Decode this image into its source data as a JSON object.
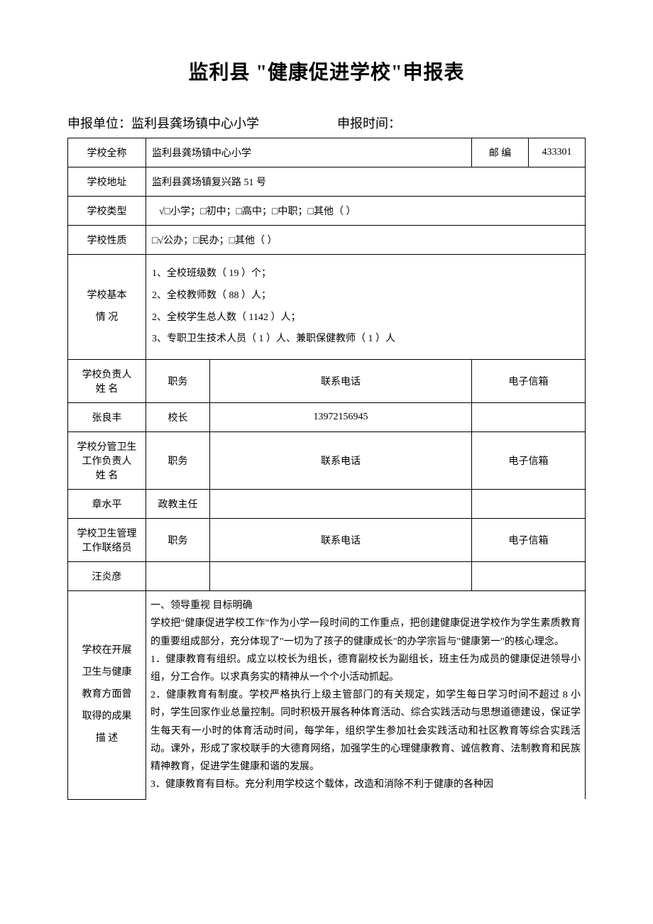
{
  "title": "监利县 \"健康促进学校\"申报表",
  "header": {
    "unit_label": "申报单位：",
    "unit_value": "监利县龚场镇中心小学",
    "time_label": "申报时间："
  },
  "rows": {
    "school_name_label": "学校全称",
    "school_name": "监利县龚场镇中心小学",
    "postcode_label": "邮    编",
    "postcode": "433301",
    "address_label": "学校地址",
    "address": "监利县龚场镇复兴路 51 号",
    "type_label": "学校类型",
    "type_value": "√□小学；□初中；□高中；□中职；□其他（      ）",
    "nature_label": "学校性质",
    "nature_value": "□√公办；□民办；□其他（      ）",
    "basic_label1": "学校基本",
    "basic_label2": "情    况",
    "basic_line1": "1、全校班级数（   19      ）个；",
    "basic_line2": "2、全校教师数（    88      ）人；",
    "basic_line3": "2、全校学生总人数（  1142        ）人；",
    "basic_line4": "3、专职卫生技术人员（     1  ）人、兼职保健教师（  1    ）人",
    "principal_label1": "学校负责人",
    "principal_label2": "姓    名",
    "position_label": "职务",
    "phone_label": "联系电话",
    "email_label": "电子信箱",
    "principal_name": "张良丰",
    "principal_position": "校长",
    "principal_phone": "13972156945",
    "health_mgr_label1": "学校分管卫生",
    "health_mgr_label2": "工作负责人",
    "health_mgr_label3": "姓    名",
    "health_mgr_name": "章水平",
    "health_mgr_position": "政教主任",
    "liaison_label1": "学校卫生管理",
    "liaison_label2": "工作联络员",
    "liaison_name": "汪炎彦",
    "achievements_label1": "学校在开展",
    "achievements_label2": "卫生与健康",
    "achievements_label3": "教育方面曾",
    "achievements_label4": "取得的成果",
    "achievements_label5": "描        述",
    "achievements_text": "一、领导重视  目标明确\n学校把\"健康促进学校工作\"作为小学一段时间的工作重点，把创建健康促进学校作为学生素质教育的重要组成部分，充分体现了\"一切为了孩子的健康成长\"的办学宗旨与\"健康第一\"的核心理念。\n1．健康教育有组织。成立以校长为组长，德育副校长为副组长，班主任为成员的健康促进领导小组，分工合作。以求真务实的精神从一个个小活动抓起。\n2．健康教育有制度。学校严格执行上级主管部门的有关规定，如学生每日学习时间不超过 8 小时，学生回家作业总量控制。同时积极开展各种体育活动、综合实践活动与思想道德建设，保证学生每天有一小时的体育活动时间，每学年，组织学生参加社会实践活动和社区教育等综合实践活动。课外，形成了家校联手的大德育网络，加强学生的心理健康教育、诚信教育、法制教育和民族精神教育，促进学生健康和谐的发展。\n3．健康教育有目标。充分利用学校这个载体，改造和消除不利于健康的各种因"
  }
}
